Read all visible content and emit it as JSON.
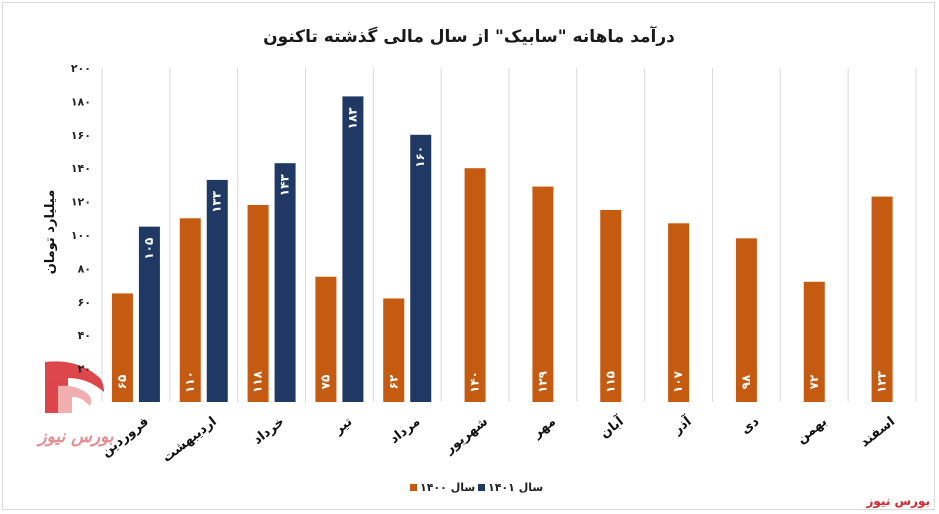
{
  "chart_data": {
    "type": "bar",
    "title": "درآمد ماهانه \"سابیک\" از سال مالی گذشته تاکنون",
    "ylabel": "میلیارد تومان",
    "xlabel": "",
    "ylim": [
      0,
      200
    ],
    "yticks": [
      0,
      20,
      40,
      60,
      80,
      100,
      120,
      140,
      160,
      180,
      200
    ],
    "ytick_labels": [
      "",
      "۲۰",
      "۴۰",
      "۶۰",
      "۸۰",
      "۱۰۰",
      "۱۲۰",
      "۱۴۰",
      "۱۶۰",
      "۱۸۰",
      "۲۰۰"
    ],
    "grid": "vertical",
    "legend_position": "bottom-center",
    "categories": [
      "فروردین",
      "اردیبهشت",
      "خرداد",
      "تیر",
      "مرداد",
      "شهریور",
      "مهر",
      "آبان",
      "آذر",
      "دی",
      "بهمن",
      "اسفند"
    ],
    "series": [
      {
        "name": "سال ۱۴۰۰",
        "color": "#c55a11",
        "values": [
          65,
          110,
          118,
          75,
          62,
          140,
          129,
          115,
          107,
          98,
          72,
          123
        ],
        "labels": [
          "۶۵",
          "۱۱۰",
          "۱۱۸",
          "۷۵",
          "۶۲",
          "۱۴۰",
          "۱۲۹",
          "۱۱۵",
          "۱۰۷",
          "۹۸",
          "۷۲",
          "۱۲۳"
        ]
      },
      {
        "name": "سال ۱۴۰۱",
        "color": "#1f3864",
        "values": [
          105,
          133,
          143,
          183,
          160,
          null,
          null,
          null,
          null,
          null,
          null,
          null
        ],
        "labels": [
          "۱۰۵",
          "۱۳۳",
          "۱۴۳",
          "۱۸۳",
          "۱۶۰",
          "",
          "",
          "",
          "",
          "",
          "",
          ""
        ]
      }
    ]
  },
  "source_text": "بورس نیوز",
  "watermark": {
    "text": "بورس نیوز",
    "colors": {
      "red": "#d7262b",
      "gray": "#9a9a9a"
    }
  }
}
